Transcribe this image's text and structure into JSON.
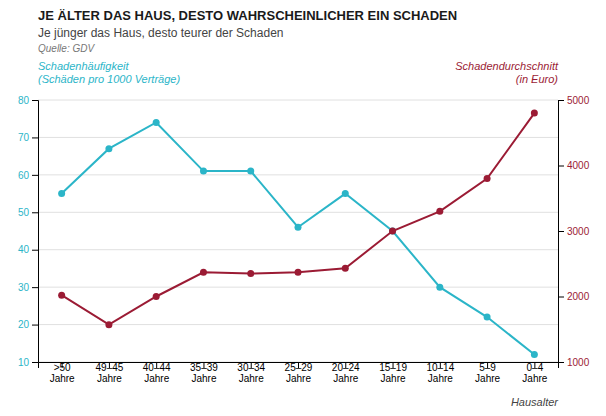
{
  "chart_data": {
    "type": "line",
    "title": "JE ÄLTER DAS HAUS, DESTO WAHRSCHEINLICHER EIN SCHADEN",
    "subtitle": "Je jünger das Haus, desto teurer der Schaden",
    "source": "Quelle: GDV",
    "xlabel": "Hausalter",
    "categories": [
      ">50\nJahre",
      "49–45\nJahre",
      "40–44\nJahre",
      "35–39\nJahre",
      "30–34\nJahre",
      "25–29\nJahre",
      "20–24\nJahre",
      "15–19\nJahre",
      "10–14\nJahre",
      "5–9\nJahre",
      "0–4\nJahre"
    ],
    "series": [
      {
        "name": "Schadenhäufigkeit\n(Schäden pro 1000 Verträge)",
        "color": "#2BB5C8",
        "marker": "circle",
        "values": [
          55,
          67,
          74,
          61,
          61,
          46,
          55,
          45,
          30,
          22,
          12
        ]
      },
      {
        "name": "Schadendurchschnitt\n(in Euro)",
        "color": "#9B1B34",
        "marker": "circle",
        "axis": "y2",
        "values": [
          2020,
          1570,
          2000,
          2370,
          2350,
          2370,
          2430,
          3000,
          3300,
          3800,
          4800
        ]
      }
    ],
    "ylim": [
      10,
      80
    ],
    "yticks": [
      10,
      20,
      30,
      40,
      50,
      60,
      70,
      80
    ],
    "y2lim": [
      1000,
      5000
    ],
    "y2ticks": [
      1000,
      2000,
      3000,
      4000,
      5000
    ],
    "grid": true
  }
}
